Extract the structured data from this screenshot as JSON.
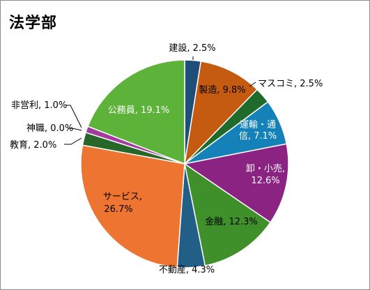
{
  "title": "法学部",
  "chart_data": {
    "type": "pie",
    "title": "法学部",
    "unit": "%",
    "slices": [
      {
        "label": "建設",
        "value": 2.5,
        "color": "#1f4e79"
      },
      {
        "label": "製造",
        "value": 9.8,
        "color": "#c55a11"
      },
      {
        "label": "マスコミ",
        "value": 2.5,
        "color": "#1e6b2c"
      },
      {
        "label": "運輸・通信",
        "value": 7.1,
        "color": "#1481b8"
      },
      {
        "label": "卸・小売",
        "value": 12.6,
        "color": "#8b2383"
      },
      {
        "label": "金融",
        "value": 12.3,
        "color": "#3f8f2a"
      },
      {
        "label": "不動産",
        "value": 4.3,
        "color": "#215f86"
      },
      {
        "label": "サービス",
        "value": 26.7,
        "color": "#ed7431"
      },
      {
        "label": "教育",
        "value": 2.0,
        "color": "#27682a"
      },
      {
        "label": "神職",
        "value": 0.0,
        "color": "#7b2a7d"
      },
      {
        "label": "非営利",
        "value": 1.0,
        "color": "#a23aa0"
      },
      {
        "label": "公務員",
        "value": 19.1,
        "color": "#5db33a"
      }
    ],
    "data_labels": [
      {
        "text": "建設, 2.5%"
      },
      {
        "text": "製造, 9.8%"
      },
      {
        "text": "マスコミ, 2.5%"
      },
      {
        "text": "運輸・通"
      },
      {
        "text": "信, 7.1%"
      },
      {
        "text": "卸・小売,"
      },
      {
        "text": "12.6%"
      },
      {
        "text": "金融, 12.3%"
      },
      {
        "text": "不動産, 4.3%"
      },
      {
        "text": "サービス,"
      },
      {
        "text": "26.7%"
      },
      {
        "text": "教育, 2.0%"
      },
      {
        "text": "神職, 0.0%"
      },
      {
        "text": "非営利, 1.0%"
      },
      {
        "text": "公務員, 19.1%"
      }
    ]
  }
}
